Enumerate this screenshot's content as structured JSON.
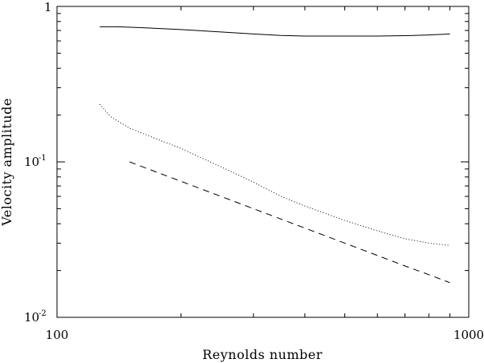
{
  "chart_data": {
    "type": "line",
    "title": "",
    "xlabel": "Reynolds number",
    "ylabel": "Velocity amplitude",
    "xscale": "log",
    "yscale": "log",
    "xlim": [
      100,
      1000
    ],
    "ylim": [
      0.01,
      1
    ],
    "x_major_ticks": [
      {
        "value": 100,
        "label": "100"
      },
      {
        "value": 1000,
        "label": "1000"
      }
    ],
    "y_major_ticks": [
      {
        "value": 0.01,
        "base": "10",
        "exp": "-2"
      },
      {
        "value": 0.1,
        "base": "10",
        "exp": "-1"
      },
      {
        "value": 1,
        "base": "1",
        "exp": ""
      }
    ],
    "grid": false,
    "legend": "none",
    "series": [
      {
        "style": "solid",
        "x": [
          127,
          140,
          160,
          200,
          250,
          300,
          350,
          400,
          500,
          600,
          700,
          800,
          900
        ],
        "y": [
          0.74,
          0.74,
          0.73,
          0.71,
          0.685,
          0.665,
          0.65,
          0.645,
          0.645,
          0.645,
          0.648,
          0.655,
          0.665
        ]
      },
      {
        "style": "dotted",
        "x": [
          127,
          135,
          150,
          175,
          200,
          250,
          300,
          350,
          400,
          500,
          600,
          700,
          800,
          900
        ],
        "y": [
          0.235,
          0.195,
          0.165,
          0.14,
          0.122,
          0.093,
          0.074,
          0.06,
          0.052,
          0.042,
          0.036,
          0.032,
          0.03,
          0.029
        ]
      },
      {
        "style": "dashed",
        "x": [
          150,
          200,
          300,
          400,
          500,
          600,
          700,
          800,
          900
        ],
        "y": [
          0.1,
          0.075,
          0.05,
          0.0375,
          0.03,
          0.025,
          0.0214,
          0.0188,
          0.0167
        ]
      }
    ]
  }
}
